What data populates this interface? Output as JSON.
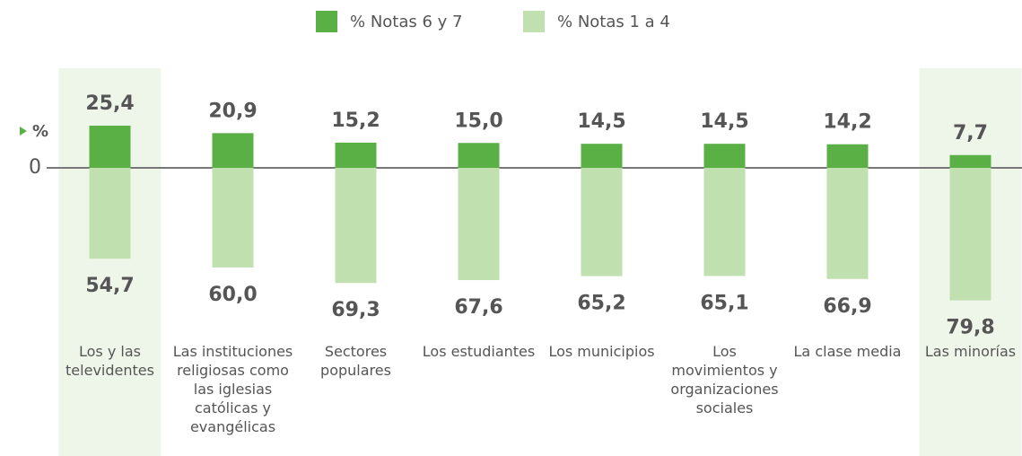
{
  "chart_data": {
    "type": "diverging_bar",
    "y_label": "%",
    "categories": [
      "Los y las televidentes",
      "Las instituciones religiosas como las iglesias católicas y evangélicas",
      "Sectores populares",
      "Los estudiantes",
      "Los municipios",
      "Los movimientos y organizaciones sociales",
      "La clase media",
      "Las minorías"
    ],
    "series": [
      {
        "name": "% Notas 6 y 7",
        "color": "#5ab045",
        "values": [
          25.4,
          20.9,
          15.2,
          15.0,
          14.5,
          14.5,
          14.2,
          7.7
        ],
        "value_labels": [
          "25,4",
          "20,9",
          "15,2",
          "15,0",
          "14,5",
          "14,5",
          "14,2",
          "7,7"
        ]
      },
      {
        "name": "% Notas 1 a 4",
        "color": "#c1e0b0",
        "values": [
          54.7,
          60.0,
          69.3,
          67.6,
          65.2,
          65.1,
          66.9,
          79.8
        ],
        "value_labels": [
          "54,7",
          "60,0",
          "69,3",
          "67,6",
          "65,2",
          "65,1",
          "66,9",
          "79,8"
        ]
      }
    ],
    "ylim": [
      -85,
      30
    ],
    "yticks": [
      0
    ],
    "highlight": [
      0,
      7
    ],
    "highlight_color": "#eef6e9"
  }
}
